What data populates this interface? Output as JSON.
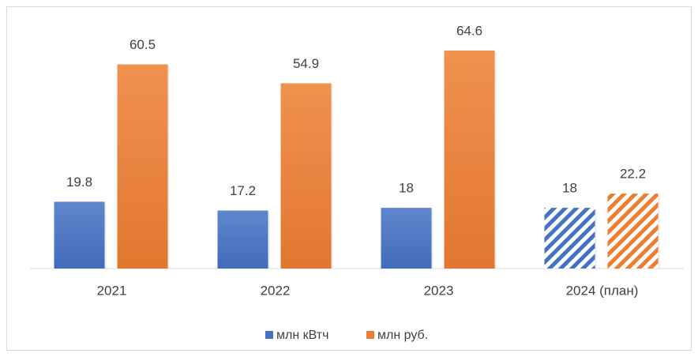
{
  "chart_data": {
    "type": "bar",
    "categories": [
      "2021",
      "2022",
      "2023",
      "2024 (план)"
    ],
    "series": [
      {
        "name": "млн кВтч",
        "color": "#4472c4",
        "values": [
          19.8,
          17.2,
          18,
          18
        ],
        "hatched": [
          false,
          false,
          false,
          true
        ]
      },
      {
        "name": "млн руб.",
        "color": "#ed7d31",
        "values": [
          60.5,
          54.9,
          64.6,
          22.2
        ],
        "hatched": [
          false,
          false,
          false,
          true
        ]
      }
    ],
    "legend": "bottom"
  }
}
